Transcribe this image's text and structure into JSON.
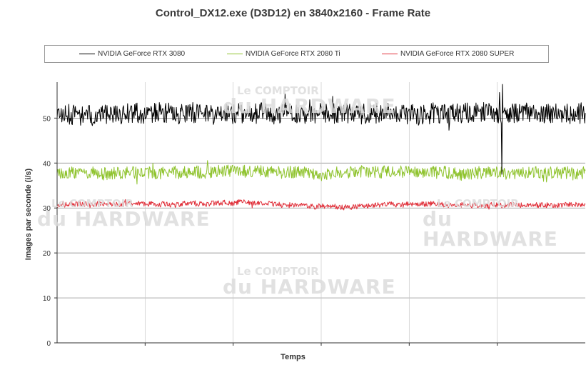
{
  "watermark": {
    "line1": "Le COMPTOIR",
    "line2": "du HARDWARE"
  },
  "chart_data": {
    "type": "line",
    "title": "Control_DX12.exe (D3D12) en 3840x2160 - Frame Rate",
    "xlabel": "Temps",
    "ylabel": "Images par seconde (i/s)",
    "ylim": [
      0,
      58
    ],
    "yticks": [
      "0",
      "10",
      "20",
      "30",
      "40",
      "50"
    ],
    "grid": true,
    "legend_position": "top",
    "series": [
      {
        "name": "NVIDIA GeForce RTX 3080",
        "color": "#000000",
        "mean": 51.0,
        "amplitude": 2.3,
        "min": 37.5,
        "max": 57.5
      },
      {
        "name": "NVIDIA GeForce RTX 2080 Ti",
        "color": "#8fc32e",
        "mean": 38.0,
        "amplitude": 1.4,
        "min": 35.0,
        "max": 41.0
      },
      {
        "name": "NVIDIA GeForce RTX 2080 SUPER",
        "color": "#e0303a",
        "mean": 30.8,
        "amplitude": 0.6,
        "min": 29.0,
        "max": 32.5
      }
    ]
  }
}
